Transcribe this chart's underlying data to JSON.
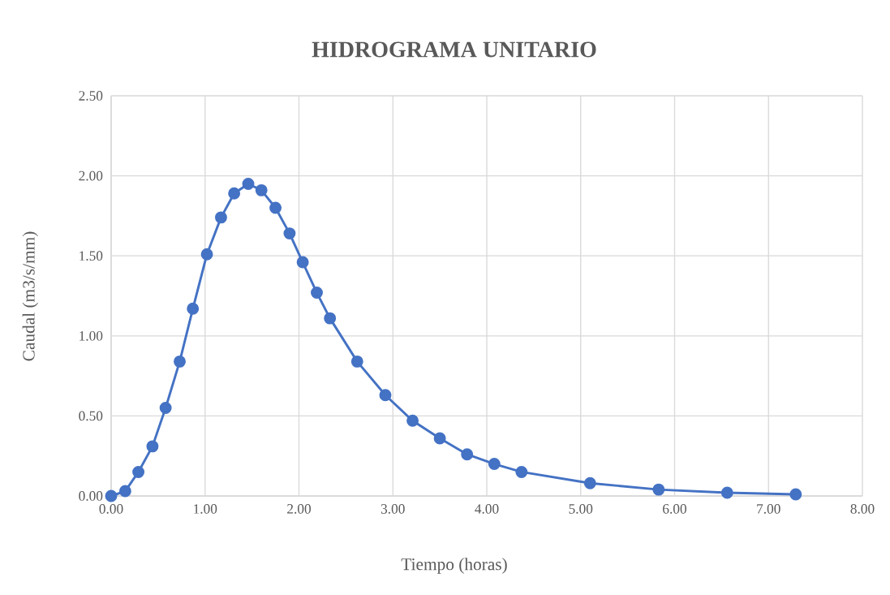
{
  "chart_data": {
    "type": "line",
    "title": "HIDROGRAMA UNITARIO",
    "xlabel": "Tiempo (horas)",
    "ylabel": "Caudal (m3/s/mm)",
    "x": [
      0,
      0.15,
      0.29,
      0.44,
      0.58,
      0.73,
      0.87,
      1.02,
      1.17,
      1.31,
      1.46,
      1.6,
      1.75,
      1.9,
      2.04,
      2.19,
      2.33,
      2.62,
      2.92,
      3.21,
      3.5,
      3.79,
      4.08,
      4.37,
      5.1,
      5.83,
      6.56,
      7.29
    ],
    "values": [
      0,
      0.03,
      0.15,
      0.31,
      0.55,
      0.84,
      1.17,
      1.51,
      1.74,
      1.89,
      1.95,
      1.91,
      1.8,
      1.64,
      1.46,
      1.27,
      1.11,
      0.84,
      0.63,
      0.47,
      0.36,
      0.26,
      0.2,
      0.15,
      0.08,
      0.04,
      0.02,
      0.01
    ],
    "color": "#4472c4",
    "marker": "circle",
    "line_style": "solid",
    "grid": true,
    "xlim": [
      0,
      8
    ],
    "ylim": [
      0,
      2.5
    ],
    "xticks": [
      {
        "value": 0,
        "label": "0.00"
      },
      {
        "value": 1,
        "label": "1.00"
      },
      {
        "value": 2,
        "label": "2.00"
      },
      {
        "value": 3,
        "label": "3.00"
      },
      {
        "value": 4,
        "label": "4.00"
      },
      {
        "value": 5,
        "label": "5.00"
      },
      {
        "value": 6,
        "label": "6.00"
      },
      {
        "value": 7,
        "label": "7.00"
      },
      {
        "value": 8,
        "label": "8.00"
      }
    ],
    "yticks": [
      {
        "value": 0,
        "label": "0.00"
      },
      {
        "value": 0.5,
        "label": "0.50"
      },
      {
        "value": 1,
        "label": "1.00"
      },
      {
        "value": 1.5,
        "label": "1.50"
      },
      {
        "value": 2,
        "label": "2.00"
      },
      {
        "value": 2.5,
        "label": "2.50"
      }
    ]
  }
}
